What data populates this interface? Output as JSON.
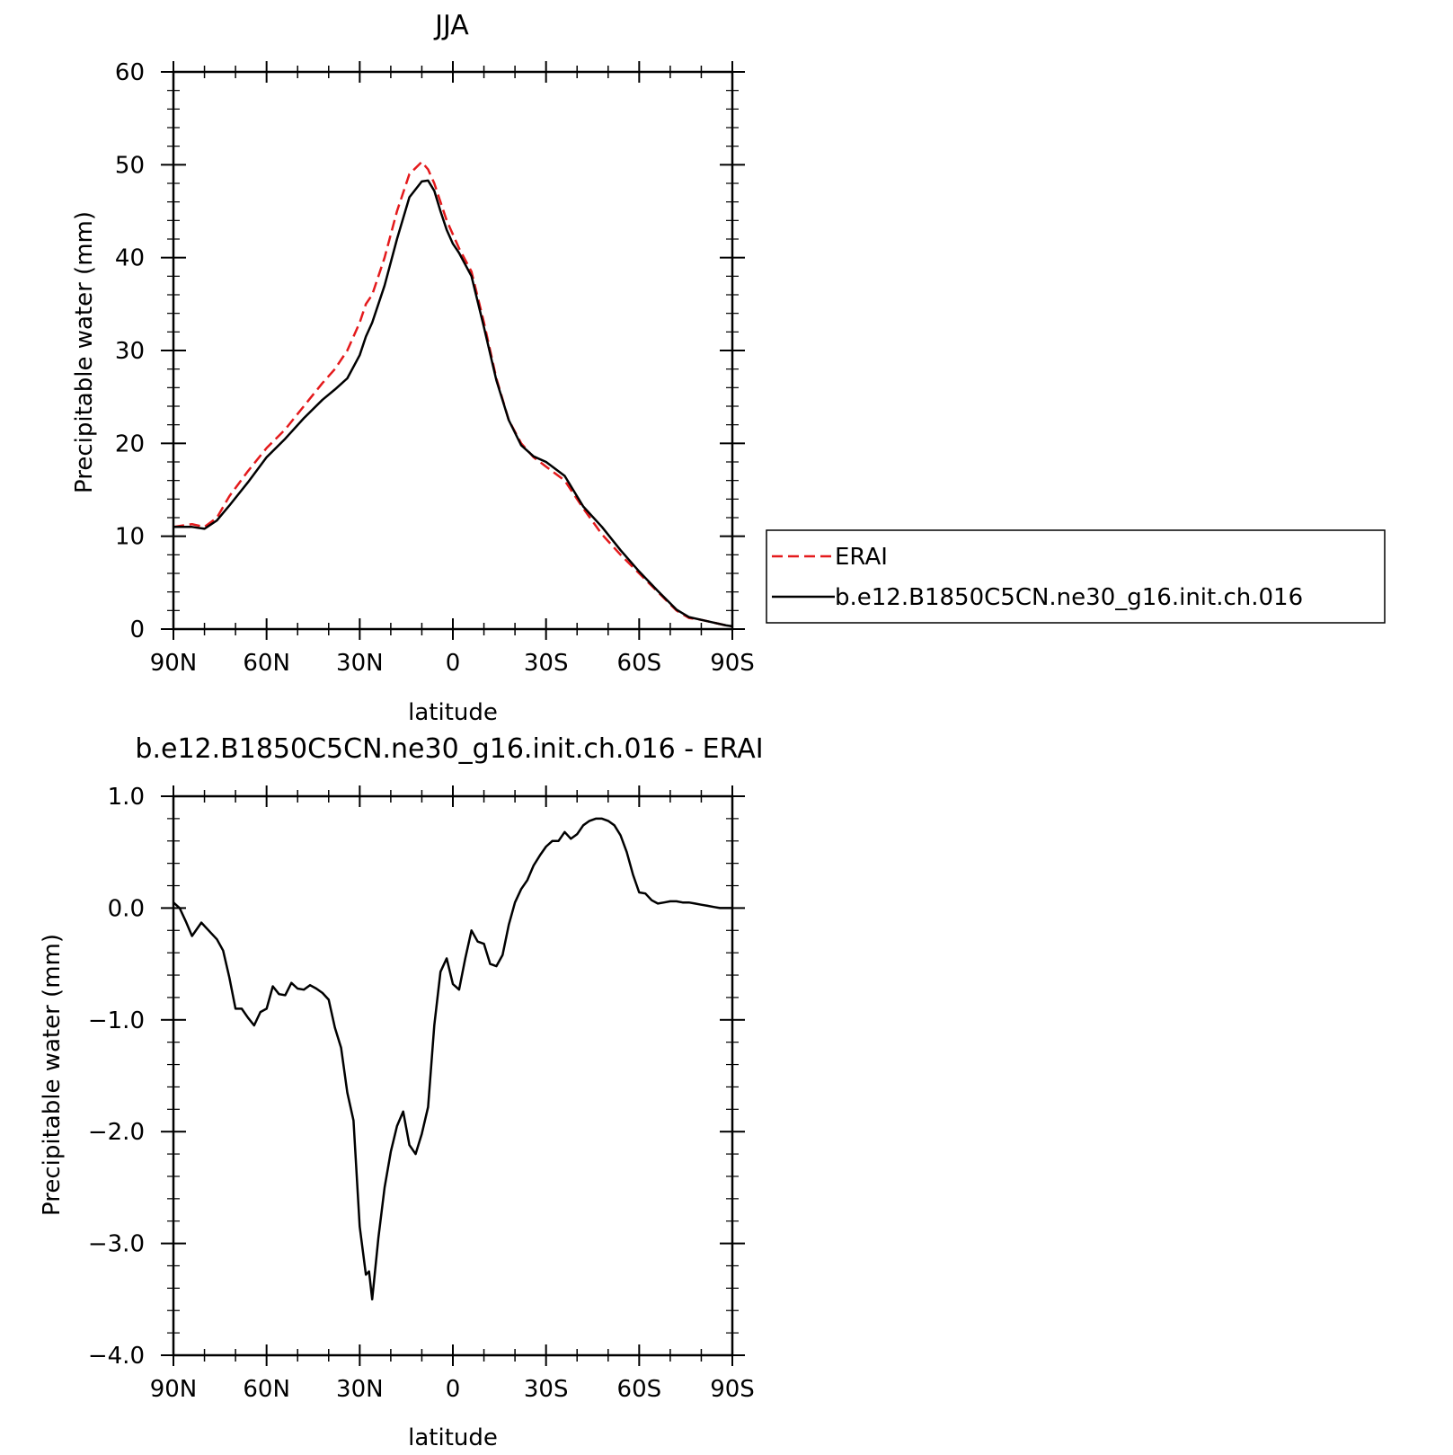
{
  "chart_data": [
    {
      "type": "line",
      "title": "JJA",
      "xlabel": "latitude",
      "ylabel": "Precipitable water (mm)",
      "xlim": [
        90,
        -90
      ],
      "ylim": [
        0,
        60
      ],
      "x_ticks": [
        90,
        60,
        30,
        0,
        -30,
        -60,
        -90
      ],
      "x_tick_labels": [
        "90N",
        "60N",
        "30N",
        "0",
        "30S",
        "60S",
        "90S"
      ],
      "y_ticks": [
        0,
        10,
        20,
        30,
        40,
        50,
        60
      ],
      "y_tick_labels": [
        "0",
        "10",
        "20",
        "30",
        "40",
        "50",
        "60"
      ],
      "legend_position": "right",
      "series": [
        {
          "name": "ERAI",
          "color": "#e41a1c",
          "dash": "dashed",
          "x": [
            90,
            84,
            80,
            76,
            72,
            66,
            60,
            54,
            48,
            42,
            38,
            34,
            30,
            28,
            26,
            22,
            18,
            14,
            10,
            8,
            6,
            4,
            2,
            0,
            -2,
            -6,
            -10,
            -14,
            -18,
            -22,
            -26,
            -30,
            -36,
            -42,
            -48,
            -54,
            -60,
            -66,
            -72,
            -76,
            -80,
            -84,
            -88,
            -90
          ],
          "y": [
            11,
            11.3,
            11,
            12,
            14.3,
            17,
            19.5,
            21.5,
            24,
            26.5,
            28,
            30,
            33,
            35,
            36,
            40,
            45,
            49,
            50.3,
            49.5,
            48,
            46,
            44,
            42.5,
            41,
            38.5,
            33,
            27,
            22.5,
            20,
            18.5,
            17.5,
            16,
            13,
            10.2,
            8,
            6,
            4,
            2,
            1.2,
            1,
            0.7,
            0.4,
            0.3
          ]
        },
        {
          "name": "b.e12.B1850C5CN.ne30_g16.init.ch.016",
          "color": "#000000",
          "dash": "solid",
          "x": [
            90,
            84,
            80,
            76,
            72,
            66,
            60,
            54,
            48,
            42,
            38,
            34,
            30,
            28,
            26,
            22,
            18,
            14,
            10,
            8,
            6,
            4,
            2,
            0,
            -2,
            -6,
            -10,
            -14,
            -18,
            -22,
            -26,
            -30,
            -36,
            -42,
            -48,
            -54,
            -60,
            -66,
            -72,
            -76,
            -80,
            -84,
            -88,
            -90
          ],
          "y": [
            11,
            11,
            10.8,
            11.7,
            13.3,
            15.8,
            18.5,
            20.5,
            22.7,
            24.7,
            25.8,
            27,
            29.5,
            31.5,
            33,
            37,
            42,
            46.5,
            48.2,
            48.3,
            47.2,
            45,
            43,
            41.5,
            40.5,
            38,
            32.5,
            26.8,
            22.5,
            19.8,
            18.6,
            18,
            16.5,
            13.2,
            11,
            8.5,
            6.2,
            4.1,
            2.1,
            1.3,
            1,
            0.7,
            0.4,
            0.3
          ]
        }
      ]
    },
    {
      "type": "line",
      "title": "b.e12.B1850C5CN.ne30_g16.init.ch.016 - ERAI",
      "xlabel": "latitude",
      "ylabel": "Precipitable water (mm)",
      "xlim": [
        90,
        -90
      ],
      "ylim": [
        -4.0,
        1.0
      ],
      "x_ticks": [
        90,
        60,
        30,
        0,
        -30,
        -60,
        -90
      ],
      "x_tick_labels": [
        "90N",
        "60N",
        "30N",
        "0",
        "30S",
        "60S",
        "90S"
      ],
      "y_ticks": [
        1.0,
        0.0,
        -1.0,
        -2.0,
        -3.0,
        -4.0
      ],
      "y_tick_labels": [
        "1.0",
        "0.0",
        "−1.0",
        "−2.0",
        "−3.0",
        "−4.0"
      ],
      "series": [
        {
          "name": "",
          "color": "#000000",
          "dash": "solid",
          "x": [
            90,
            88,
            86,
            84,
            81,
            78,
            76,
            74,
            72,
            70,
            68,
            66,
            64,
            62,
            60,
            58,
            56,
            54,
            52,
            50,
            48,
            46,
            44,
            42,
            40,
            38,
            36,
            34,
            32,
            30,
            28,
            27,
            26,
            24,
            22,
            20,
            18,
            16,
            14,
            12,
            10,
            8,
            6,
            4,
            2,
            0,
            -2,
            -4,
            -6,
            -8,
            -10,
            -12,
            -14,
            -16,
            -18,
            -20,
            -22,
            -24,
            -26,
            -28,
            -30,
            -32,
            -34,
            -36,
            -38,
            -40,
            -42,
            -44,
            -46,
            -48,
            -50,
            -52,
            -54,
            -56,
            -58,
            -60,
            -62,
            -64,
            -66,
            -68,
            -70,
            -72,
            -74,
            -76,
            -78,
            -80,
            -82,
            -84,
            -86,
            -88,
            -90
          ],
          "y": [
            0.05,
            0,
            -0.12,
            -0.25,
            -0.13,
            -0.22,
            -0.28,
            -0.38,
            -0.62,
            -0.9,
            -0.9,
            -0.98,
            -1.05,
            -0.93,
            -0.9,
            -0.7,
            -0.77,
            -0.78,
            -0.67,
            -0.72,
            -0.73,
            -0.69,
            -0.72,
            -0.76,
            -0.82,
            -1.07,
            -1.25,
            -1.65,
            -1.9,
            -2.85,
            -3.28,
            -3.25,
            -3.5,
            -2.95,
            -2.5,
            -2.18,
            -1.95,
            -1.82,
            -2.12,
            -2.2,
            -2.02,
            -1.78,
            -1.05,
            -0.57,
            -0.45,
            -0.68,
            -0.73,
            -0.45,
            -0.2,
            -0.3,
            -0.32,
            -0.5,
            -0.52,
            -0.42,
            -0.15,
            0.05,
            0.17,
            0.25,
            0.38,
            0.47,
            0.55,
            0.6,
            0.6,
            0.68,
            0.62,
            0.66,
            0.74,
            0.78,
            0.8,
            0.8,
            0.78,
            0.74,
            0.65,
            0.5,
            0.3,
            0.14,
            0.13,
            0.07,
            0.04,
            0.05,
            0.06,
            0.06,
            0.05,
            0.05,
            0.04,
            0.03,
            0.02,
            0.01,
            0.0,
            0.0,
            0.0
          ]
        }
      ]
    }
  ]
}
